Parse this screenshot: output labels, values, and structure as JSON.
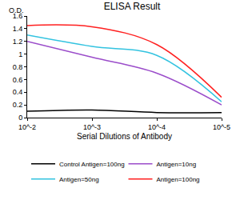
{
  "chart_data": {
    "type": "line",
    "title": "ELISA Result",
    "ylabel": "O.D.",
    "xlabel": "Serial Dilutions of Antibody",
    "x": [
      0.01,
      0.001,
      0.0001,
      1e-05
    ],
    "series": [
      {
        "name": "Control Antigen=100ng",
        "color": "#000000",
        "values": [
          0.1,
          0.12,
          0.08,
          0.08
        ]
      },
      {
        "name": "Antigen=10ng",
        "color": "#9b4dca",
        "values": [
          1.2,
          0.95,
          0.7,
          0.2
        ]
      },
      {
        "name": "Antigen=50ng",
        "color": "#33c3e0",
        "values": [
          1.3,
          1.12,
          0.98,
          0.25
        ]
      },
      {
        "name": "Antigen=100ng",
        "color": "#ff2020",
        "values": [
          1.45,
          1.43,
          1.15,
          0.32
        ]
      }
    ],
    "log": "x",
    "xlim": [
      0.01,
      1e-05
    ],
    "xticks": [
      {
        "value": 0.01,
        "label": "10^-2"
      },
      {
        "value": 0.001,
        "label": "10^-3"
      },
      {
        "value": 0.0001,
        "label": "10^-4"
      },
      {
        "value": 1e-05,
        "label": "10^-5"
      }
    ],
    "ylim": [
      0,
      1.6
    ],
    "yticks": [
      0,
      0.2,
      0.4,
      0.6,
      0.8,
      1,
      1.2,
      1.4,
      1.6
    ],
    "grid": false,
    "legend": "bottom",
    "line_style": "spline"
  }
}
